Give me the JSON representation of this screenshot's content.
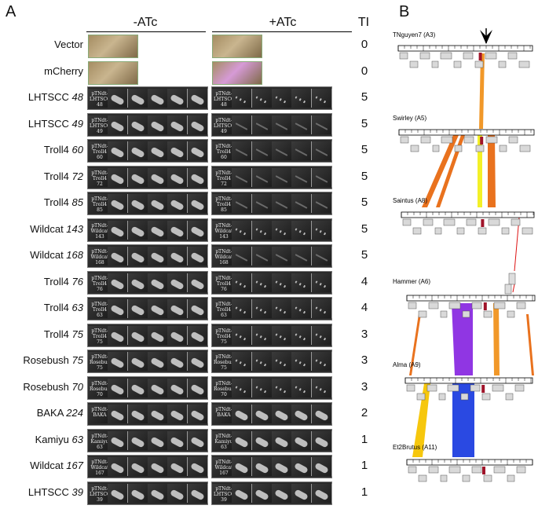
{
  "panels": {
    "a_letter": "A",
    "b_letter": "B"
  },
  "panel_a": {
    "minus_label": "-ATc",
    "plus_label": "+ATc",
    "ti_label": "TI",
    "rows": [
      {
        "name": "Vector",
        "num": "",
        "ti": "0",
        "type": "photo",
        "plus": "plain"
      },
      {
        "name": "mCherry",
        "num": "",
        "ti": "0",
        "type": "photo",
        "plus": "pink"
      },
      {
        "name": "LHTSCC ",
        "num": "48",
        "ti": "5",
        "tag": "pTNdt- LHTSCC 48",
        "plus": "dotted"
      },
      {
        "name": "LHTSCC ",
        "num": "49",
        "ti": "5",
        "tag": "pTNdt- LHTSCC 49",
        "plus": "faint"
      },
      {
        "name": "Troll4 ",
        "num": "60",
        "ti": "5",
        "tag": "pTNdt- Troll4 60",
        "plus": "faint"
      },
      {
        "name": "Troll4 ",
        "num": "72",
        "ti": "5",
        "tag": "pTNdt- Troll4 72",
        "plus": "faint"
      },
      {
        "name": "Troll4 ",
        "num": "85",
        "ti": "5",
        "tag": "pTNdt- Troll4 85",
        "plus": "faint"
      },
      {
        "name": "Wildcat ",
        "num": "143",
        "ti": "5",
        "tag": "pTNdt- Wildcat 143",
        "plus": "dotted"
      },
      {
        "name": "Wildcat ",
        "num": "168",
        "ti": "5",
        "tag": "pTNdt- Wildcat 168",
        "plus": "faint"
      },
      {
        "name": "Troll4 ",
        "num": "76",
        "ti": "4",
        "tag": "pTNdt- Troll4 76",
        "plus": "dotted"
      },
      {
        "name": "Troll4 ",
        "num": "63",
        "ti": "4",
        "tag": "pTNdt- Troll4 63",
        "plus": "dotted"
      },
      {
        "name": "Troll4 ",
        "num": "75",
        "ti": "3",
        "tag": "pTNdt- Troll4 75",
        "plus": "dotted"
      },
      {
        "name": "Rosebush ",
        "num": "75",
        "ti": "3",
        "tag": "pTNdt- Rosebush 75",
        "plus": "dotted"
      },
      {
        "name": "Rosebush ",
        "num": "70",
        "ti": "3",
        "tag": "pTNdt- Rosebush 70",
        "plus": "dotted"
      },
      {
        "name": "BAKA ",
        "num": "224",
        "ti": "2",
        "tag": "pTNdt- BAKA",
        "plus": "streak"
      },
      {
        "name": "Kamiyu ",
        "num": "63",
        "ti": "1",
        "tag": "pTNdt- Kamiyu 63",
        "plus": "streak"
      },
      {
        "name": "Wildcat ",
        "num": "167",
        "ti": "1",
        "tag": "pTNdt- Wildcat 167",
        "plus": "streak"
      },
      {
        "name": "LHTSCC ",
        "num": "39",
        "ti": "1",
        "tag": "pTNdt- LHTSCC 39",
        "plus": "streak"
      }
    ]
  },
  "panel_b": {
    "genomes": [
      {
        "label": "TNguyen7 (A3)"
      },
      {
        "label": "Swirley (A5)"
      },
      {
        "label": "Saintus (A8)"
      },
      {
        "label": "Hammer (A6)"
      },
      {
        "label": "Alma (A9)"
      },
      {
        "label": "Et2Brutus (A11)"
      }
    ],
    "colors": {
      "orange": "#f0921e",
      "dark_orange": "#e86a12",
      "yellow": "#f2ef1c",
      "purple": "#8a2be2",
      "blue": "#1f3fe0",
      "gold": "#f5c400",
      "marker": "#a0142a",
      "red_line": "#d11"
    }
  }
}
